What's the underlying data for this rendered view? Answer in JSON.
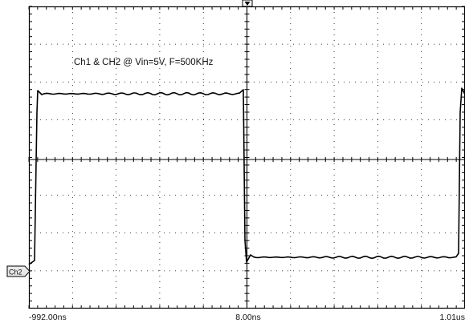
{
  "annotation": "Ch1 & CH2 @ Vin=5V, F=500KHz",
  "channel_marker": "Ch2",
  "time_labels": {
    "left": "-992.00ns",
    "center": "8.00ns",
    "right": "1.01us"
  },
  "colors": {
    "background": "#ffffff",
    "grid": "#000000",
    "trace": "#000000",
    "label_box_fill": "#e8e8e8"
  },
  "icons": {
    "trigger_marker": "trigger-arrow-icon",
    "channel_marker": "channel-pointer-icon"
  }
}
